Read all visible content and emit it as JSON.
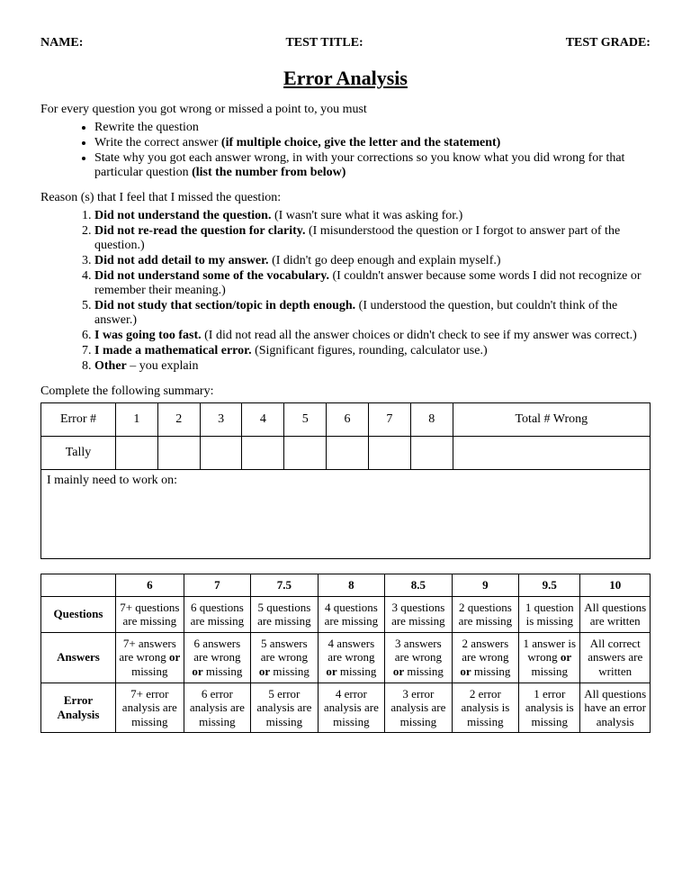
{
  "header": {
    "name_label": "NAME:",
    "title_label": "TEST TITLE:",
    "grade_label": "TEST GRADE:"
  },
  "title": "Error Analysis",
  "intro": "For every question you got wrong or missed a point to, you must",
  "bullets": [
    {
      "pre": "Rewrite the question",
      "bold": ""
    },
    {
      "pre": "Write the correct answer ",
      "bold": "(if multiple choice, give the letter and the statement)"
    },
    {
      "pre": "State why you got each answer wrong, in with your corrections so you know what you did wrong for that particular question ",
      "bold": "(list the number from below)"
    }
  ],
  "reasons_intro": "Reason (s) that I feel that I missed the question:",
  "reasons": [
    {
      "bold": "Did not understand the question.",
      "rest": " (I wasn't sure what it was asking for.)"
    },
    {
      "bold": "Did not re-read the question for clarity.",
      "rest": " (I misunderstood the question or I forgot to answer part of the question.)"
    },
    {
      "bold": "Did not add detail to my answer.",
      "rest": " (I didn't go deep enough and explain myself.)"
    },
    {
      "bold": "Did not understand some of the vocabulary.",
      "rest": " (I couldn't answer because some words I did not recognize or remember their meaning.)"
    },
    {
      "bold": "Did not study that section/topic in depth enough.",
      "rest": " (I understood the question, but couldn't think of the answer.)"
    },
    {
      "bold": "I was going too fast.",
      "rest": " (I did not read all the answer choices or didn't check to see if my answer was correct.)"
    },
    {
      "bold": "I made a mathematical error.",
      "rest": "  (Significant figures, rounding, calculator use.)"
    },
    {
      "bold": "Other",
      "rest": " – you explain"
    }
  ],
  "summary_label": "Complete the following summary:",
  "summary": {
    "row1_label": "Error #",
    "cols": [
      "1",
      "2",
      "3",
      "4",
      "5",
      "6",
      "7",
      "8"
    ],
    "total_label": "Total # Wrong",
    "row2_label": "Tally",
    "workon_label": "I mainly need to work on:"
  },
  "rubric": {
    "scores": [
      "6",
      "7",
      "7.5",
      "8",
      "8.5",
      "9",
      "9.5",
      "10"
    ],
    "rows": [
      {
        "label": "Questions",
        "cells": [
          "7+ questions are missing",
          "6 questions are missing",
          "5 questions are missing",
          "4 questions are missing",
          "3 questions are missing",
          "2 questions are missing",
          "1 question is missing",
          "All questions are written"
        ]
      },
      {
        "label": "Answers",
        "cells": [
          {
            "pre": "7+ answers are wrong ",
            "bold": "or",
            "post": " missing"
          },
          {
            "pre": "6 answers are wrong ",
            "bold": "or",
            "post": " missing"
          },
          {
            "pre": "5 answers are wrong ",
            "bold": "or",
            "post": " missing"
          },
          {
            "pre": "4 answers are wrong ",
            "bold": "or",
            "post": " missing"
          },
          {
            "pre": "3 answers are wrong ",
            "bold": "or",
            "post": " missing"
          },
          {
            "pre": "2 answers are wrong ",
            "bold": "or",
            "post": " missing"
          },
          {
            "pre": "1 answer is wrong ",
            "bold": "or",
            "post": " missing"
          },
          "All correct answers are written"
        ]
      },
      {
        "label": "Error Analysis",
        "cells": [
          "7+ error analysis are missing",
          "6 error analysis are missing",
          "5 error analysis are missing",
          "4 error analysis are missing",
          "3 error analysis are missing",
          "2 error analysis is missing",
          "1 error analysis is missing",
          "All questions have an error analysis"
        ]
      }
    ]
  }
}
